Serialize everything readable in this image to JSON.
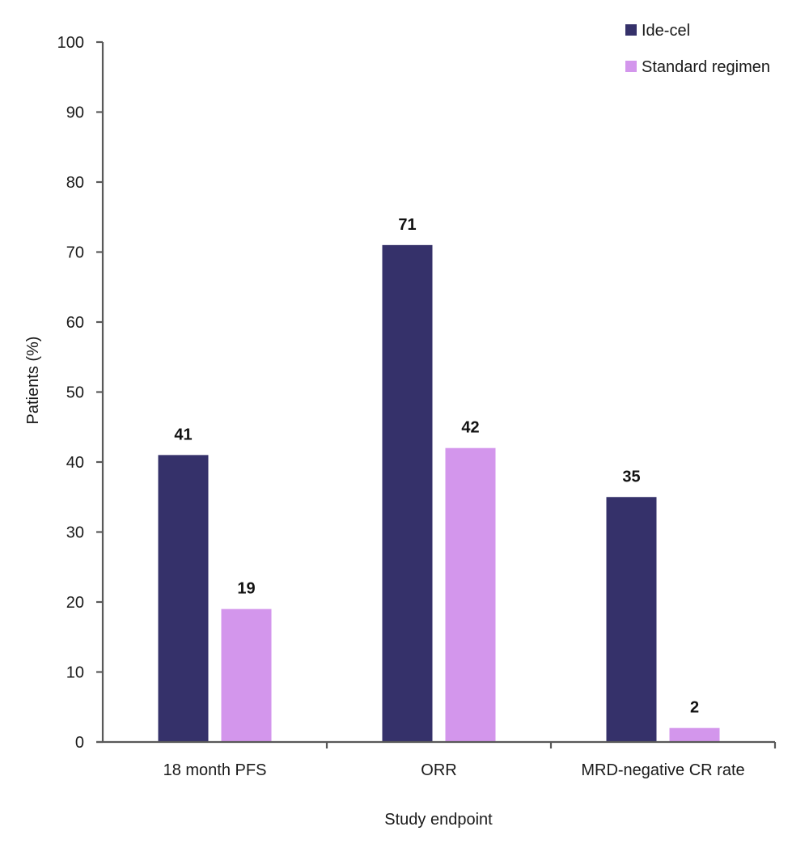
{
  "chart_data": {
    "type": "bar",
    "title": "",
    "xlabel": "Study endpoint",
    "ylabel": "Patients (%)",
    "ylim": [
      0,
      100
    ],
    "yticks": [
      0,
      10,
      20,
      30,
      40,
      50,
      60,
      70,
      80,
      90,
      100
    ],
    "grid": false,
    "legend_position": "top-right",
    "categories": [
      "18 month PFS",
      "ORR",
      "MRD-negative CR rate"
    ],
    "series": [
      {
        "name": "Ide-cel",
        "color": "#35316a",
        "values": [
          41,
          71,
          35
        ]
      },
      {
        "name": "Standard regimen",
        "color": "#d396ec",
        "values": [
          19,
          42,
          2
        ]
      }
    ],
    "data_labels": true
  }
}
